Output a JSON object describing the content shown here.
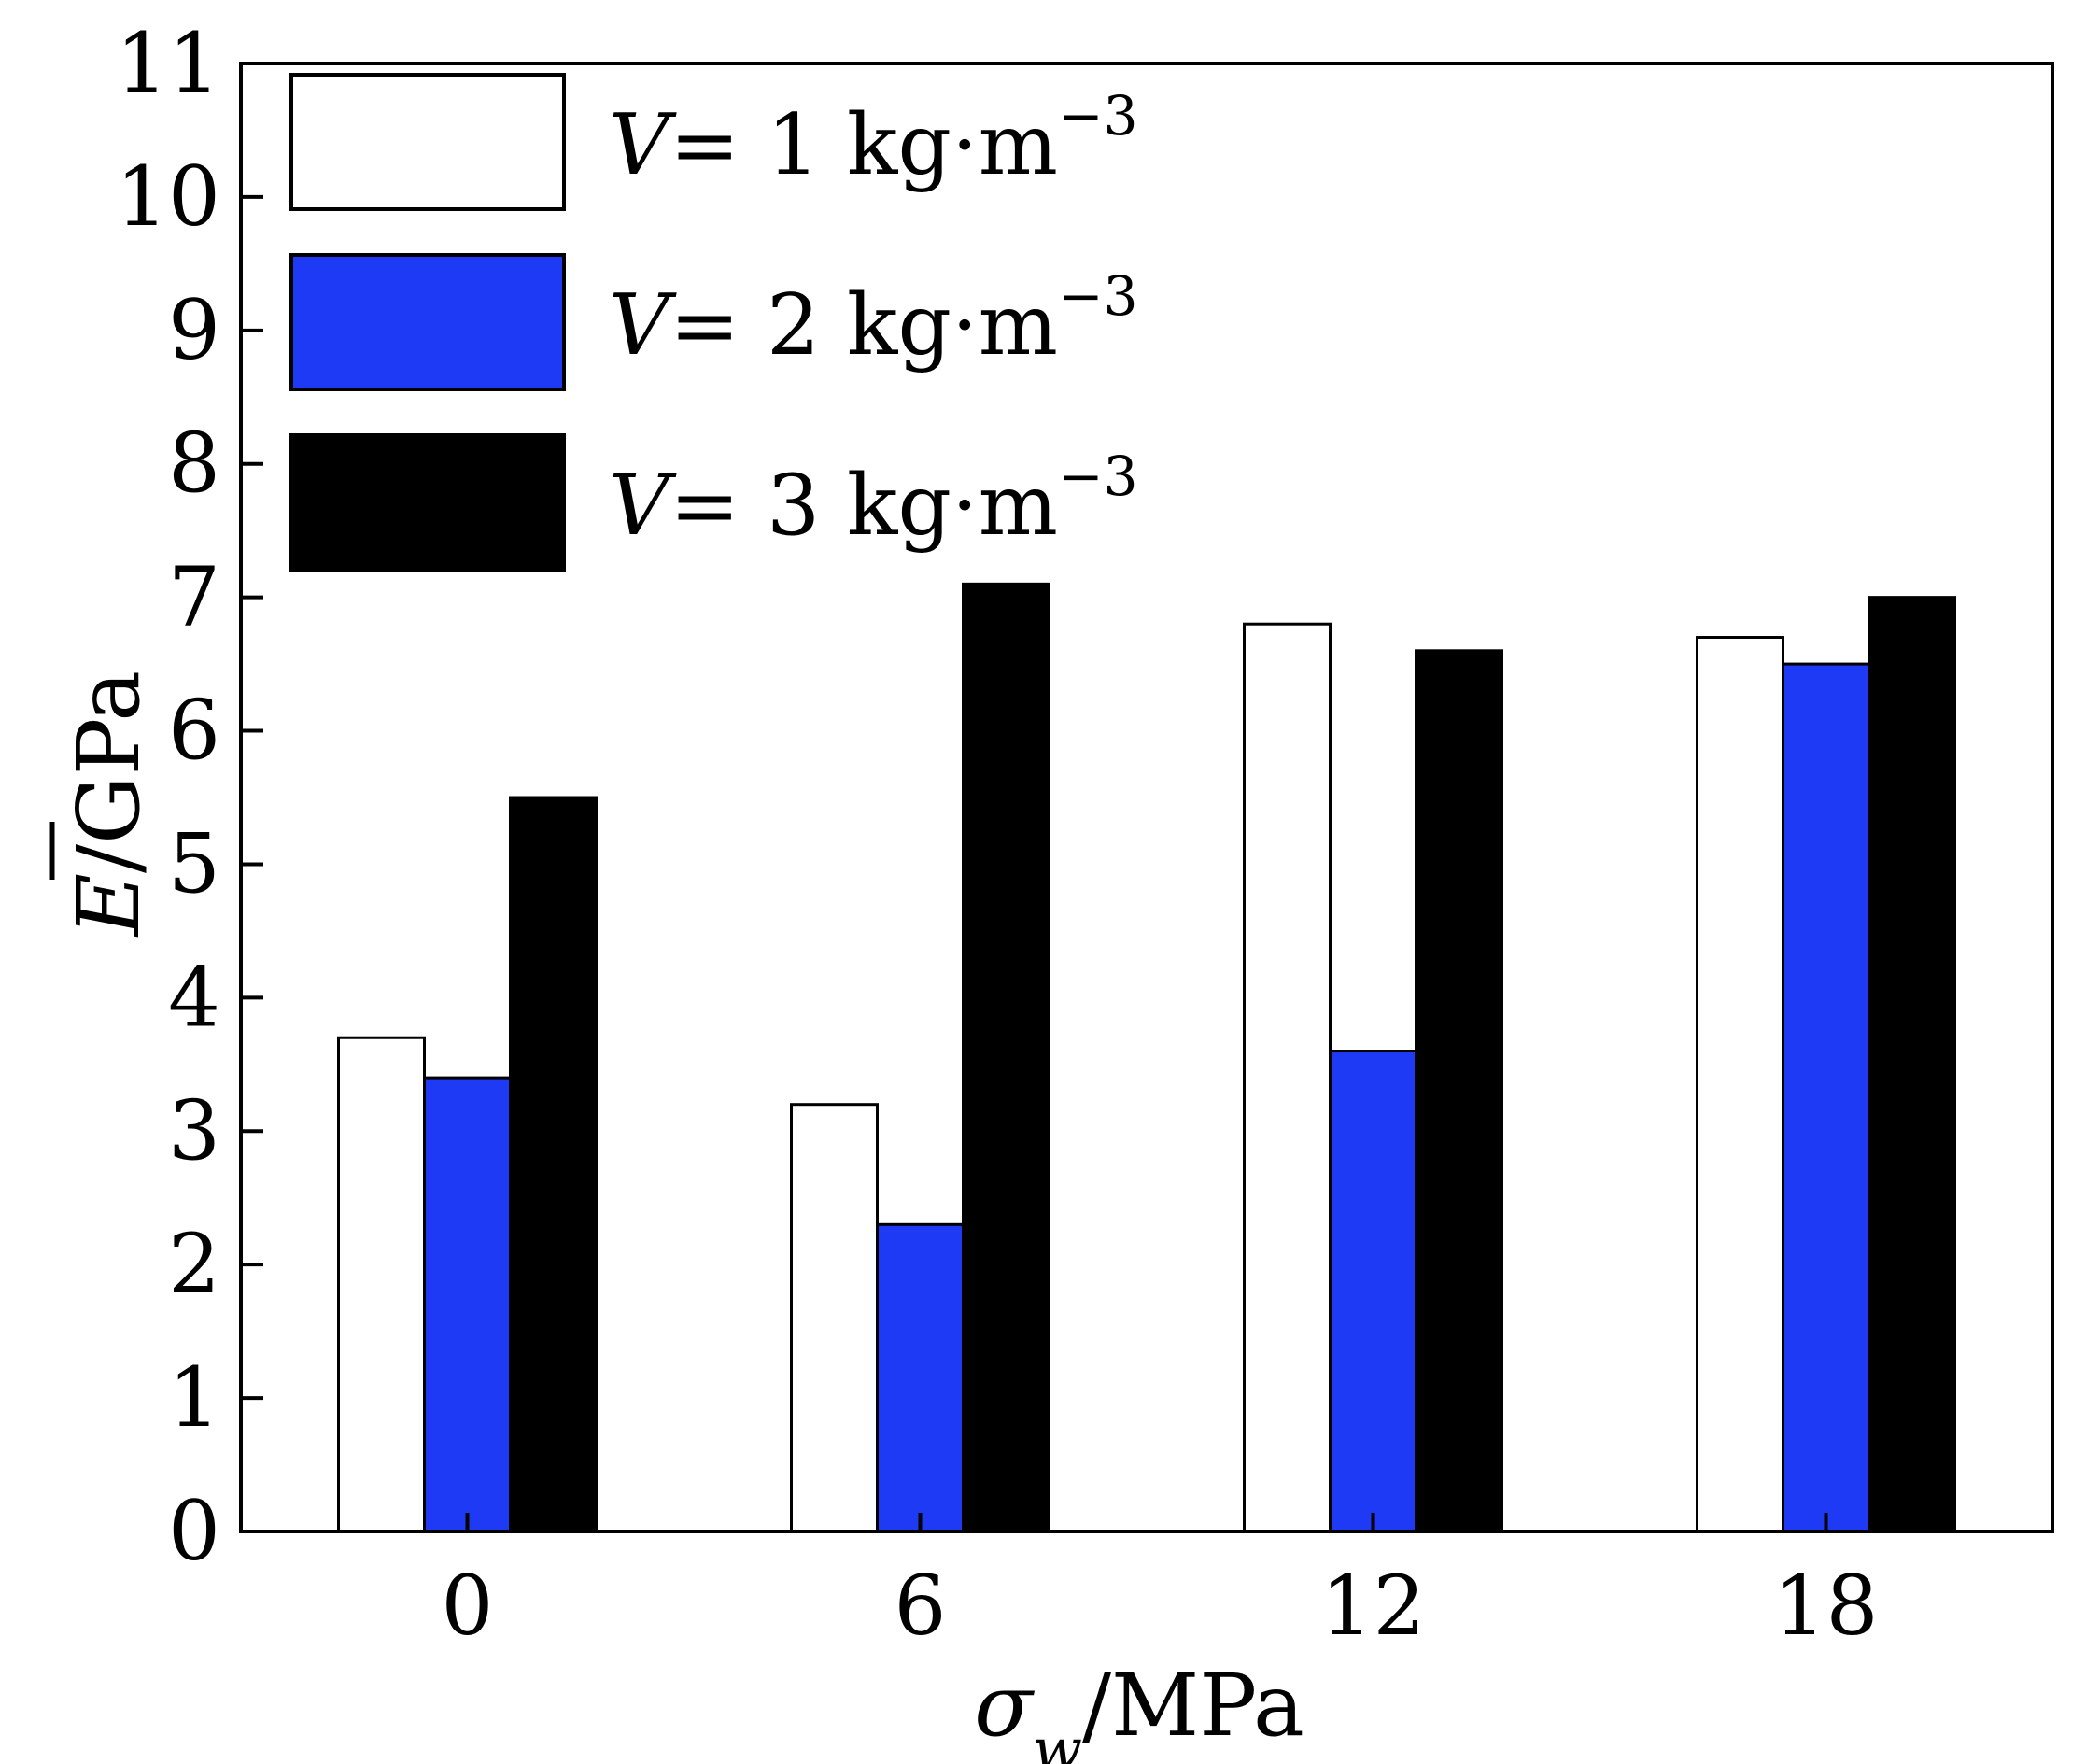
{
  "chart_data": {
    "type": "bar",
    "categories": [
      "0",
      "6",
      "12",
      "18"
    ],
    "series": [
      {
        "name": "V= 1 kg·m−3",
        "var": "V",
        "eq": "= 1 kg·m",
        "sup": "−3",
        "values": [
          3.7,
          3.2,
          6.8,
          6.7
        ],
        "fill": "#ffffff"
      },
      {
        "name": "V= 2 kg·m−3",
        "var": "V",
        "eq": "= 2 kg·m",
        "sup": "−3",
        "values": [
          3.4,
          2.3,
          3.6,
          6.5
        ],
        "fill": "#1f3af5"
      },
      {
        "name": "V= 3 kg·m−3",
        "var": "V",
        "eq": "= 3 kg·m",
        "sup": "−3",
        "values": [
          5.5,
          7.1,
          6.6,
          7.0
        ],
        "fill": "#000000"
      }
    ],
    "ylim": [
      0,
      11
    ],
    "yticks": [
      "0",
      "1",
      "2",
      "3",
      "4",
      "5",
      "6",
      "7",
      "8",
      "9",
      "10",
      "11"
    ],
    "ylabel": {
      "symbol": "E",
      "unit": "/GPa"
    },
    "xlabel": {
      "symbol": "σ",
      "sub": "w",
      "unit": "/MPa"
    },
    "legend_position": "top-left",
    "grid": false
  }
}
